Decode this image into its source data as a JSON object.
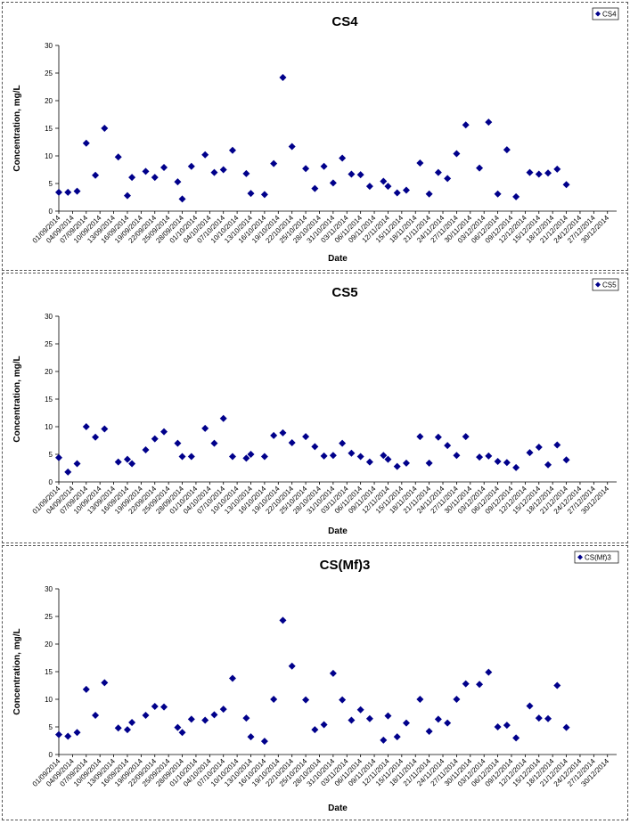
{
  "chart_data": [
    {
      "type": "scatter",
      "title": "CS4",
      "xlabel": "Date",
      "ylabel": "Concentration, mg/L",
      "ylim": [
        0,
        30
      ],
      "yticks": [
        0,
        5,
        10,
        15,
        20,
        25,
        30
      ],
      "xlim": [
        "01/09/2014",
        "01/01/2015"
      ],
      "x_tick_labels": [
        "01/09/2014",
        "04/09/2014",
        "07/09/2014",
        "10/09/2014",
        "13/09/2014",
        "16/09/2014",
        "19/09/2014",
        "22/09/2014",
        "25/09/2014",
        "28/09/2014",
        "01/10/2014",
        "04/10/2014",
        "07/10/2014",
        "10/10/2014",
        "13/10/2014",
        "16/10/2014",
        "19/10/2014",
        "22/10/2014",
        "25/10/2014",
        "28/10/2014",
        "31/10/2014",
        "03/11/2014",
        "06/11/2014",
        "09/11/2014",
        "12/11/2014",
        "15/11/2014",
        "18/11/2014",
        "21/11/2014",
        "24/11/2014",
        "27/11/2014",
        "30/11/2014",
        "03/12/2014",
        "06/12/2014",
        "09/12/2014",
        "12/12/2014",
        "15/12/2014",
        "18/12/2014",
        "21/12/2014",
        "24/12/2014",
        "27/12/2014",
        "30/12/2014"
      ],
      "legend": "top-right",
      "marker_color": "#00008b",
      "series": [
        {
          "name": "CS4",
          "points": [
            [
              "01/09/2014",
              3.4
            ],
            [
              "03/09/2014",
              3.4
            ],
            [
              "05/09/2014",
              3.6
            ],
            [
              "07/09/2014",
              12.3
            ],
            [
              "09/09/2014",
              6.5
            ],
            [
              "11/09/2014",
              15.0
            ],
            [
              "14/09/2014",
              9.8
            ],
            [
              "16/09/2014",
              2.8
            ],
            [
              "17/09/2014",
              6.1
            ],
            [
              "20/09/2014",
              7.2
            ],
            [
              "22/09/2014",
              6.1
            ],
            [
              "24/09/2014",
              7.9
            ],
            [
              "27/09/2014",
              5.3
            ],
            [
              "28/09/2014",
              2.2
            ],
            [
              "30/09/2014",
              8.1
            ],
            [
              "03/10/2014",
              10.2
            ],
            [
              "05/10/2014",
              7.0
            ],
            [
              "07/10/2014",
              7.5
            ],
            [
              "09/10/2014",
              11.0
            ],
            [
              "12/10/2014",
              6.8
            ],
            [
              "13/10/2014",
              3.2
            ],
            [
              "16/10/2014",
              3.0
            ],
            [
              "18/10/2014",
              8.6
            ],
            [
              "20/10/2014",
              24.2
            ],
            [
              "22/10/2014",
              11.7
            ],
            [
              "25/10/2014",
              7.7
            ],
            [
              "27/10/2014",
              4.1
            ],
            [
              "29/10/2014",
              8.1
            ],
            [
              "31/10/2014",
              5.1
            ],
            [
              "02/11/2014",
              9.6
            ],
            [
              "04/11/2014",
              6.7
            ],
            [
              "06/11/2014",
              6.6
            ],
            [
              "08/11/2014",
              4.5
            ],
            [
              "11/11/2014",
              5.4
            ],
            [
              "12/11/2014",
              4.5
            ],
            [
              "14/11/2014",
              3.3
            ],
            [
              "16/11/2014",
              3.8
            ],
            [
              "19/11/2014",
              8.7
            ],
            [
              "21/11/2014",
              3.1
            ],
            [
              "23/11/2014",
              7.0
            ],
            [
              "25/11/2014",
              5.9
            ],
            [
              "27/11/2014",
              10.4
            ],
            [
              "29/11/2014",
              15.6
            ],
            [
              "02/12/2014",
              7.8
            ],
            [
              "04/12/2014",
              16.1
            ],
            [
              "06/12/2014",
              3.1
            ],
            [
              "08/12/2014",
              11.1
            ],
            [
              "10/12/2014",
              2.6
            ],
            [
              "13/12/2014",
              7.0
            ],
            [
              "15/12/2014",
              6.7
            ],
            [
              "17/12/2014",
              6.9
            ],
            [
              "19/12/2014",
              7.6
            ],
            [
              "21/12/2014",
              4.8
            ]
          ]
        }
      ]
    },
    {
      "type": "scatter",
      "title": "CS5",
      "xlabel": "Date",
      "ylabel": "Concentration, mg/L",
      "ylim": [
        0,
        30
      ],
      "yticks": [
        0,
        5,
        10,
        15,
        20,
        25,
        30
      ],
      "xlim": [
        "01/09/2014",
        "01/01/2015"
      ],
      "x_tick_labels": [
        "01/09/2014",
        "04/09/2014",
        "07/09/2014",
        "10/09/2014",
        "13/09/2014",
        "16/09/2014",
        "19/09/2014",
        "22/09/2014",
        "25/09/2014",
        "28/09/2014",
        "01/10/2014",
        "04/10/2014",
        "07/10/2014",
        "10/10/2014",
        "13/10/2014",
        "16/10/2014",
        "19/10/2014",
        "22/10/2014",
        "25/10/2014",
        "28/10/2014",
        "31/10/2014",
        "03/11/2014",
        "06/11/2014",
        "09/11/2014",
        "12/11/2014",
        "15/11/2014",
        "18/11/2014",
        "21/11/2014",
        "24/11/2014",
        "27/11/2014",
        "30/11/2014",
        "03/12/2014",
        "06/12/2014",
        "09/12/2014",
        "12/12/2014",
        "15/12/2014",
        "18/12/2014",
        "21/12/2014",
        "24/12/2014",
        "27/12/2014",
        "30/12/2014"
      ],
      "legend": "top-right",
      "marker_color": "#00008b",
      "series": [
        {
          "name": "CS5",
          "points": [
            [
              "01/09/2014",
              4.4
            ],
            [
              "03/09/2014",
              1.8
            ],
            [
              "05/09/2014",
              3.3
            ],
            [
              "07/09/2014",
              10.0
            ],
            [
              "09/09/2014",
              8.1
            ],
            [
              "11/09/2014",
              9.6
            ],
            [
              "14/09/2014",
              3.6
            ],
            [
              "16/09/2014",
              4.1
            ],
            [
              "17/09/2014",
              3.3
            ],
            [
              "20/09/2014",
              5.8
            ],
            [
              "22/09/2014",
              7.8
            ],
            [
              "24/09/2014",
              9.1
            ],
            [
              "27/09/2014",
              7.0
            ],
            [
              "28/09/2014",
              4.6
            ],
            [
              "30/09/2014",
              4.6
            ],
            [
              "03/10/2014",
              9.7
            ],
            [
              "05/10/2014",
              7.0
            ],
            [
              "07/10/2014",
              11.5
            ],
            [
              "09/10/2014",
              4.6
            ],
            [
              "12/10/2014",
              4.3
            ],
            [
              "13/10/2014",
              5.0
            ],
            [
              "16/10/2014",
              4.6
            ],
            [
              "18/10/2014",
              8.4
            ],
            [
              "20/10/2014",
              8.9
            ],
            [
              "22/10/2014",
              7.1
            ],
            [
              "25/10/2014",
              8.2
            ],
            [
              "27/10/2014",
              6.4
            ],
            [
              "29/10/2014",
              4.7
            ],
            [
              "31/10/2014",
              4.8
            ],
            [
              "02/11/2014",
              7.0
            ],
            [
              "04/11/2014",
              5.2
            ],
            [
              "06/11/2014",
              4.6
            ],
            [
              "08/11/2014",
              3.6
            ],
            [
              "11/11/2014",
              4.8
            ],
            [
              "12/11/2014",
              4.1
            ],
            [
              "14/11/2014",
              2.8
            ],
            [
              "16/11/2014",
              3.4
            ],
            [
              "19/11/2014",
              8.2
            ],
            [
              "21/11/2014",
              3.4
            ],
            [
              "23/11/2014",
              8.1
            ],
            [
              "25/11/2014",
              6.6
            ],
            [
              "27/11/2014",
              4.8
            ],
            [
              "29/11/2014",
              8.2
            ],
            [
              "02/12/2014",
              4.5
            ],
            [
              "04/12/2014",
              4.7
            ],
            [
              "06/12/2014",
              3.7
            ],
            [
              "08/12/2014",
              3.5
            ],
            [
              "10/12/2014",
              2.6
            ],
            [
              "13/12/2014",
              5.3
            ],
            [
              "15/12/2014",
              6.3
            ],
            [
              "17/12/2014",
              3.1
            ],
            [
              "19/12/2014",
              6.7
            ],
            [
              "21/12/2014",
              4.0
            ]
          ]
        }
      ]
    },
    {
      "type": "scatter",
      "title": "CS(Mf)3",
      "xlabel": "Date",
      "ylabel": "Concentration, mg/L",
      "ylim": [
        0,
        30
      ],
      "yticks": [
        0,
        5,
        10,
        15,
        20,
        25,
        30
      ],
      "xlim": [
        "01/09/2014",
        "01/01/2015"
      ],
      "x_tick_labels": [
        "01/09/2014",
        "04/09/2014",
        "07/09/2014",
        "10/09/2014",
        "13/09/2014",
        "16/09/2014",
        "19/09/2014",
        "22/09/2014",
        "25/09/2014",
        "28/09/2014",
        "01/10/2014",
        "04/10/2014",
        "07/10/2014",
        "10/10/2014",
        "13/10/2014",
        "16/10/2014",
        "19/10/2014",
        "22/10/2014",
        "25/10/2014",
        "28/10/2014",
        "31/10/2014",
        "03/11/2014",
        "06/11/2014",
        "09/11/2014",
        "12/11/2014",
        "15/11/2014",
        "18/11/2014",
        "21/11/2014",
        "24/11/2014",
        "27/11/2014",
        "30/11/2014",
        "03/12/2014",
        "06/12/2014",
        "09/12/2014",
        "12/12/2014",
        "15/12/2014",
        "18/12/2014",
        "21/12/2014",
        "24/12/2014",
        "27/12/2014",
        "30/12/2014"
      ],
      "legend": "top-right",
      "marker_color": "#00008b",
      "series": [
        {
          "name": "CS(Mf)3",
          "points": [
            [
              "01/09/2014",
              3.6
            ],
            [
              "03/09/2014",
              3.3
            ],
            [
              "05/09/2014",
              4.0
            ],
            [
              "07/09/2014",
              11.8
            ],
            [
              "09/09/2014",
              7.1
            ],
            [
              "11/09/2014",
              13.0
            ],
            [
              "14/09/2014",
              4.8
            ],
            [
              "16/09/2014",
              4.5
            ],
            [
              "17/09/2014",
              5.8
            ],
            [
              "20/09/2014",
              7.1
            ],
            [
              "22/09/2014",
              8.7
            ],
            [
              "24/09/2014",
              8.6
            ],
            [
              "27/09/2014",
              4.9
            ],
            [
              "28/09/2014",
              4.0
            ],
            [
              "30/09/2014",
              6.4
            ],
            [
              "03/10/2014",
              6.2
            ],
            [
              "05/10/2014",
              7.2
            ],
            [
              "07/10/2014",
              8.2
            ],
            [
              "09/10/2014",
              13.8
            ],
            [
              "12/10/2014",
              6.6
            ],
            [
              "13/10/2014",
              3.2
            ],
            [
              "16/10/2014",
              2.4
            ],
            [
              "18/10/2014",
              10.0
            ],
            [
              "20/10/2014",
              24.3
            ],
            [
              "22/10/2014",
              16.0
            ],
            [
              "25/10/2014",
              9.9
            ],
            [
              "27/10/2014",
              4.5
            ],
            [
              "29/10/2014",
              5.4
            ],
            [
              "31/10/2014",
              14.7
            ],
            [
              "02/11/2014",
              9.9
            ],
            [
              "04/11/2014",
              6.2
            ],
            [
              "06/11/2014",
              8.1
            ],
            [
              "08/11/2014",
              6.5
            ],
            [
              "11/11/2014",
              2.6
            ],
            [
              "12/11/2014",
              7.0
            ],
            [
              "14/11/2014",
              3.2
            ],
            [
              "16/11/2014",
              5.7
            ],
            [
              "19/11/2014",
              10.0
            ],
            [
              "21/11/2014",
              4.2
            ],
            [
              "23/11/2014",
              6.4
            ],
            [
              "25/11/2014",
              5.7
            ],
            [
              "27/11/2014",
              10.0
            ],
            [
              "29/11/2014",
              12.8
            ],
            [
              "02/12/2014",
              12.7
            ],
            [
              "04/12/2014",
              14.9
            ],
            [
              "06/12/2014",
              5.0
            ],
            [
              "08/12/2014",
              5.3
            ],
            [
              "10/12/2014",
              3.0
            ],
            [
              "13/12/2014",
              8.8
            ],
            [
              "15/12/2014",
              6.6
            ],
            [
              "17/12/2014",
              6.5
            ],
            [
              "19/12/2014",
              12.5
            ],
            [
              "21/12/2014",
              4.9
            ]
          ]
        }
      ]
    }
  ]
}
